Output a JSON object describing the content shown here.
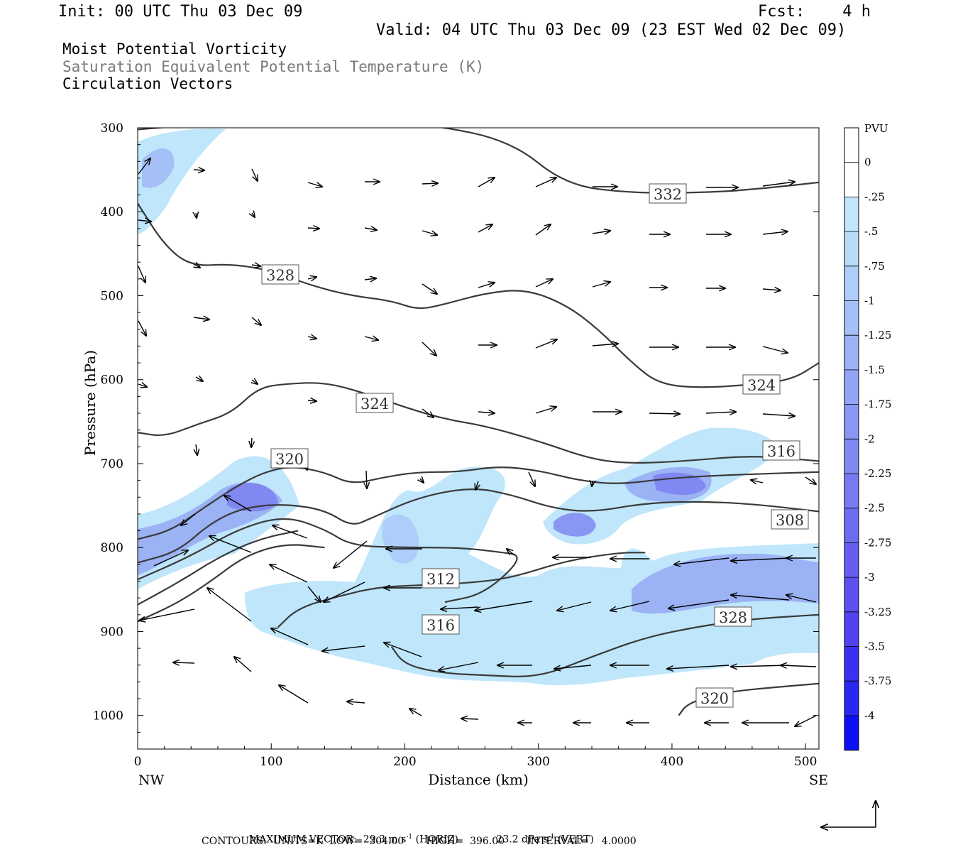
{
  "header": {
    "init": "Init: 00 UTC Thu 03 Dec 09",
    "fcst": "Fcst:    4 h",
    "valid": "Valid: 04 UTC Thu 03 Dec 09 (23 EST Wed 02 Dec 09)",
    "fields": [
      "Moist Potential Vorticity",
      "Saturation Equivalent Potential Temperature (K)",
      "Circulation Vectors"
    ]
  },
  "chart_data": {
    "type": "cross-section",
    "xlabel": "Distance (km)",
    "ylabel": "Pressure (hPa)",
    "xlim": [
      0,
      510
    ],
    "ylim": [
      1040,
      300
    ],
    "x_ticks": [
      0,
      100,
      200,
      300,
      400,
      500
    ],
    "x_tick_labels": [
      "0",
      "100",
      "200",
      "300",
      "400",
      "500"
    ],
    "y_ticks": [
      300,
      400,
      500,
      600,
      700,
      800,
      900,
      1000
    ],
    "y_tick_labels": [
      "300",
      "400",
      "500",
      "600",
      "700",
      "800",
      "900",
      "1000"
    ],
    "x_end_labels": {
      "left": "NW",
      "right": "SE"
    },
    "colorbar": {
      "label": "PVU",
      "levels": [
        "0",
        "-.25",
        "-.5",
        "-.75",
        "-1",
        "-1.25",
        "-1.5",
        "-1.75",
        "-2",
        "-2.25",
        "-2.5",
        "-2.75",
        "-3",
        "-3.25",
        "-3.5",
        "-3.75",
        "-4"
      ],
      "colors": [
        "#ffffff",
        "#ffffff",
        "#bfe6fb",
        "#b6dcfa",
        "#adcef8",
        "#a4c0f6",
        "#9bb2f5",
        "#92a4f4",
        "#8996f2",
        "#8088f2",
        "#777af1",
        "#6e6cf1",
        "#655ef1",
        "#5c50f1",
        "#5342f1",
        "#3a30f1",
        "#2828f2",
        "#0c10f4"
      ]
    },
    "contour_labels": [
      "332",
      "328",
      "324",
      "320",
      "316",
      "308",
      "312",
      "316",
      "328",
      "324",
      "320"
    ],
    "contour_lines": [
      {
        "label": "332",
        "points": [
          [
            0,
            302
          ],
          [
            30,
            298
          ],
          [
            80,
            292
          ],
          [
            150,
            288
          ],
          [
            220,
            296
          ],
          [
            280,
            316
          ],
          [
            320,
            368
          ],
          [
            370,
            378
          ],
          [
            430,
            377
          ],
          [
            470,
            372
          ],
          [
            510,
            365
          ]
        ]
      },
      {
        "label": "328",
        "points": [
          [
            0,
            390
          ],
          [
            20,
            440
          ],
          [
            40,
            465
          ],
          [
            70,
            462
          ],
          [
            100,
            470
          ],
          [
            130,
            488
          ],
          [
            160,
            500
          ],
          [
            190,
            506
          ],
          [
            210,
            517
          ],
          [
            230,
            510
          ],
          [
            260,
            497
          ],
          [
            290,
            492
          ],
          [
            320,
            510
          ],
          [
            345,
            540
          ],
          [
            370,
            580
          ],
          [
            390,
            605
          ],
          [
            420,
            610
          ],
          [
            460,
            606
          ],
          [
            490,
            600
          ],
          [
            510,
            580
          ]
        ]
      },
      {
        "label": "324",
        "points": [
          [
            0,
            663
          ],
          [
            20,
            668
          ],
          [
            45,
            653
          ],
          [
            70,
            640
          ],
          [
            90,
            610
          ],
          [
            110,
            605
          ],
          [
            140,
            603
          ],
          [
            170,
            616
          ],
          [
            200,
            633
          ],
          [
            230,
            647
          ],
          [
            260,
            655
          ],
          [
            300,
            673
          ],
          [
            340,
            695
          ],
          [
            370,
            700
          ],
          [
            410,
            697
          ],
          [
            460,
            690
          ],
          [
            510,
            697
          ]
        ]
      },
      {
        "label": "320",
        "points": [
          [
            0,
            790
          ],
          [
            25,
            780
          ],
          [
            50,
            752
          ],
          [
            75,
            726
          ],
          [
            95,
            710
          ],
          [
            115,
            703
          ],
          [
            140,
            710
          ],
          [
            160,
            725
          ],
          [
            185,
            716
          ],
          [
            210,
            710
          ],
          [
            240,
            710
          ],
          [
            270,
            703
          ],
          [
            300,
            708
          ],
          [
            330,
            720
          ],
          [
            360,
            725
          ],
          [
            400,
            717
          ],
          [
            450,
            713
          ],
          [
            510,
            710
          ]
        ]
      },
      {
        "label": "316",
        "points": [
          [
            0,
            818
          ],
          [
            30,
            805
          ],
          [
            55,
            770
          ],
          [
            80,
            752
          ],
          [
            110,
            748
          ],
          [
            140,
            755
          ],
          [
            160,
            775
          ],
          [
            175,
            765
          ],
          [
            210,
            740
          ],
          [
            250,
            728
          ],
          [
            280,
            737
          ],
          [
            310,
            753
          ],
          [
            340,
            758
          ],
          [
            380,
            747
          ],
          [
            420,
            745
          ],
          [
            460,
            748
          ],
          [
            510,
            757
          ]
        ]
      },
      {
        "label": "308",
        "points": [
          [
            0,
            838
          ],
          [
            40,
            810
          ],
          [
            75,
            778
          ],
          [
            110,
            762
          ],
          [
            140,
            778
          ],
          [
            160,
            798
          ],
          [
            200,
            800
          ],
          [
            240,
            800
          ],
          [
            270,
            805
          ],
          [
            290,
            810
          ],
          [
            260,
            855
          ],
          [
            230,
            865
          ]
        ]
      },
      {
        "label": "312",
        "points": [
          [
            0,
            888
          ],
          [
            30,
            866
          ],
          [
            55,
            840
          ],
          [
            80,
            810
          ],
          [
            110,
            795
          ],
          [
            140,
            800
          ]
        ]
      },
      {
        "label": "316",
        "points": [
          [
            0,
            868
          ],
          [
            30,
            842
          ],
          [
            60,
            812
          ],
          [
            90,
            790
          ],
          [
            120,
            780
          ]
        ]
      },
      {
        "label": "312",
        "points": [
          [
            105,
            895
          ],
          [
            120,
            872
          ],
          [
            150,
            858
          ],
          [
            180,
            847
          ],
          [
            210,
            845
          ],
          [
            250,
            842
          ],
          [
            280,
            836
          ],
          [
            320,
            816
          ],
          [
            360,
            806
          ],
          [
            380,
            806
          ]
        ]
      },
      {
        "label": "316",
        "points": [
          [
            190,
            918
          ],
          [
            200,
            940
          ],
          [
            230,
            950
          ],
          [
            260,
            952
          ],
          [
            300,
            955
          ],
          [
            340,
            930
          ],
          [
            380,
            907
          ],
          [
            420,
            894
          ],
          [
            460,
            885
          ],
          [
            510,
            880
          ]
        ]
      },
      {
        "label": "320",
        "points": [
          [
            405,
            1000
          ],
          [
            412,
            985
          ],
          [
            440,
            972
          ],
          [
            480,
            966
          ],
          [
            510,
            962
          ]
        ]
      }
    ],
    "max_vector": {
      "horiz": "29.3",
      "vert": "23.2"
    },
    "contour_info": {
      "units": "K",
      "low": "304.00",
      "high": "396.00",
      "interval": "4.0000"
    }
  },
  "footer": {
    "line1_label": "MAXIMUM VECTOR:",
    "horiz_value": "29.3",
    "horiz_unit": "m s",
    "horiz_exp": "-1",
    "horiz_tag": "(HORIZ)",
    "vert_value": "23.2",
    "vert_unit": "dPa s",
    "vert_exp": "-1",
    "vert_tag": "(VERT)",
    "line2": "CONTOURS:  UNITS=K  LOW=  304.00       HIGH=  396.00       INTERVAL=    4.0000"
  }
}
